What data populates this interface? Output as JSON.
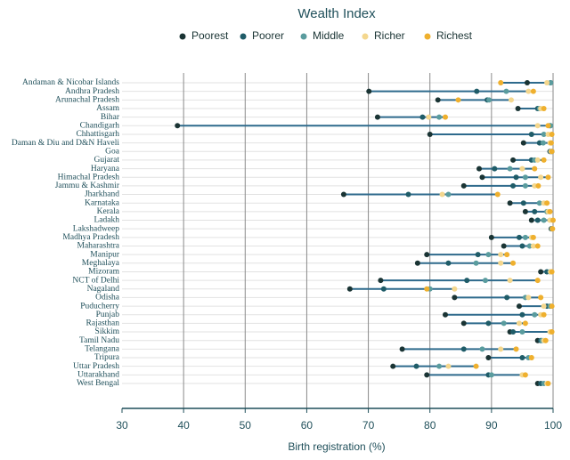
{
  "chart_data": {
    "type": "dot",
    "legend_title": "Wealth Index",
    "xlabel": "Birth registration (%)",
    "categories": [
      "Andaman & Nicobar Islands",
      "Andhra Pradesh",
      "Arunachal Pradesh",
      "Assam",
      "Bihar",
      "Chandigarh",
      "Chhattisgarh",
      "Daman & Diu and D&N Haveli",
      "Goa",
      "Gujarat",
      "Haryana",
      "Himachal Pradesh",
      "Jammu & Kashmir",
      "Jharkhand",
      "Karnataka",
      "Kerala",
      "Ladakh",
      "Lakshadweep",
      "Madhya Pradesh",
      "Maharashtra",
      "Manipur",
      "Meghalaya",
      "Mizoram",
      "NCT of Delhi",
      "Nagaland",
      "Odisha",
      "Puducherry",
      "Punjab",
      "Rajasthan",
      "Sikkim",
      "Tamil Nadu",
      "Telangana",
      "Tripura",
      "Uttar Pradesh",
      "Uttarakhand",
      "West Bengal"
    ],
    "series": [
      {
        "name": "Poorest",
        "color": "#1a3434",
        "values": [
          95.8,
          70.1,
          81.3,
          94.3,
          71.5,
          39.0,
          80.0,
          95.2,
          99.5,
          93.5,
          88.0,
          88.5,
          85.5,
          66.0,
          93.0,
          95.5,
          96.5,
          99.7,
          90.0,
          92.0,
          79.5,
          78.0,
          98.0,
          72.0,
          67.0,
          84.0,
          94.5,
          82.5,
          85.5,
          93.0,
          97.5,
          75.5,
          89.5,
          74.0,
          79.5,
          97.5
        ]
      },
      {
        "name": "Poorer",
        "color": "#1f5c68",
        "values": [
          99.6,
          87.6,
          89.3,
          97.5,
          78.8,
          99.5,
          96.5,
          97.8,
          99.8,
          96.5,
          90.5,
          94.0,
          93.5,
          76.5,
          95.2,
          97.0,
          97.5,
          99.8,
          94.5,
          95.0,
          87.8,
          83.0,
          99.0,
          86.0,
          72.5,
          92.5,
          99.0,
          95.0,
          89.5,
          93.5,
          98.0,
          85.5,
          95.0,
          77.8,
          89.5,
          98.0
        ]
      },
      {
        "name": "Middle",
        "color": "#5a9c9e",
        "values": [
          99.6,
          92.4,
          89.6,
          97.8,
          81.5,
          99.6,
          98.5,
          98.4,
          99.6,
          97.0,
          93.0,
          95.5,
          95.5,
          83.0,
          97.8,
          99.0,
          98.5,
          99.8,
          95.5,
          96.2,
          89.5,
          87.5,
          99.5,
          89.0,
          80.0,
          95.5,
          99.5,
          97.0,
          92.0,
          95.0,
          98.2,
          88.5,
          96.0,
          81.5,
          90.0,
          98.5
        ]
      },
      {
        "name": "Richer",
        "color": "#f4d78e",
        "values": [
          99.0,
          96.0,
          93.2,
          98.0,
          79.8,
          97.5,
          99.2,
          99.5,
          99.7,
          97.5,
          95.0,
          98.0,
          97.0,
          82.0,
          98.5,
          99.2,
          99.5,
          99.9,
          96.5,
          96.8,
          91.5,
          91.5,
          99.6,
          93.0,
          84.0,
          96.0,
          98.5,
          98.0,
          94.5,
          99.5,
          98.5,
          91.5,
          96.5,
          83.0,
          95.0,
          99.0
        ]
      },
      {
        "name": "Richest",
        "color": "#efb02e",
        "values": [
          91.5,
          96.8,
          84.6,
          98.5,
          82.5,
          99.2,
          99.8,
          99.7,
          99.8,
          98.5,
          97.0,
          99.2,
          97.6,
          91.0,
          99.0,
          99.5,
          100.0,
          99.9,
          96.8,
          97.5,
          92.5,
          93.5,
          99.8,
          97.5,
          79.5,
          98.0,
          99.8,
          98.5,
          95.5,
          99.8,
          98.8,
          94.0,
          96.5,
          87.5,
          95.5,
          99.2
        ]
      }
    ],
    "xlim": [
      30,
      100
    ],
    "xticks": [
      30,
      40,
      50,
      60,
      70,
      80,
      90,
      100
    ],
    "grid": true,
    "line_color": "#2e6a8c"
  }
}
